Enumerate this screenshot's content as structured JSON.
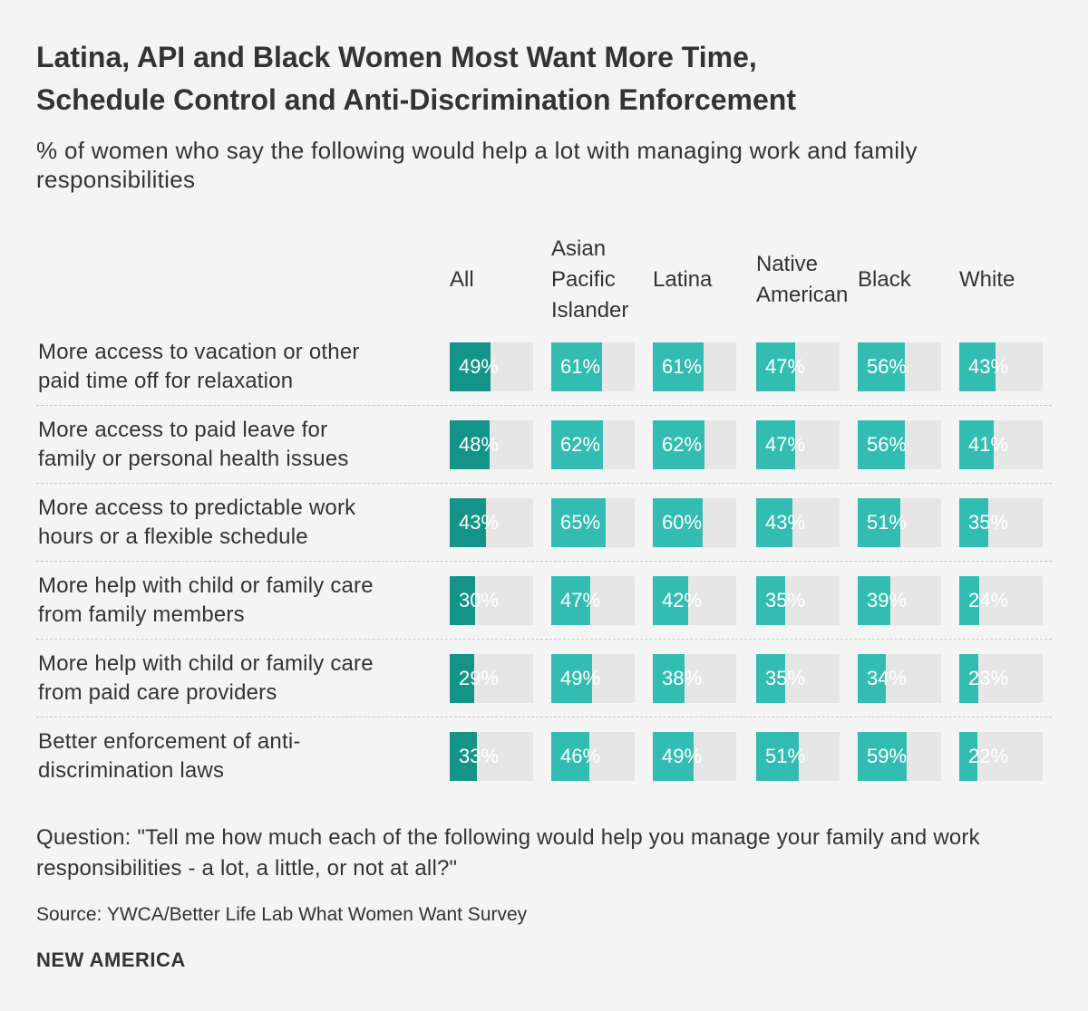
{
  "header": {
    "title_line1": "Latina, API and Black Women Most Want More Time,",
    "title_line2": "Schedule Control and Anti-Discrimination Enforcement",
    "subtitle": "% of women who say the following would help a lot with managing work and family responsibilities"
  },
  "colors": {
    "all": "#149388",
    "group": "#33bdb2",
    "track": "#e6e6e6"
  },
  "chart_data": {
    "type": "table",
    "title": "Latina, API and Black Women Most Want More Time, Schedule Control and Anti-Discrimination Enforcement",
    "unit": "%",
    "max": 100,
    "columns": [
      "All",
      "Asian\nPacific\nIslander",
      "Latina",
      "Native\nAmerican",
      "Black",
      "White"
    ],
    "rows": [
      {
        "label": "More access to vacation or other\npaid time off  for relaxation",
        "values": [
          49,
          61,
          61,
          47,
          56,
          43
        ]
      },
      {
        "label": "More access to paid leave for\nfamily or personal health issues",
        "values": [
          48,
          62,
          62,
          47,
          56,
          41
        ]
      },
      {
        "label": "More access to predictable work\nhours or a flexible schedule",
        "values": [
          43,
          65,
          60,
          43,
          51,
          35
        ]
      },
      {
        "label": "More help with child or family care\nfrom family members",
        "values": [
          30,
          47,
          42,
          35,
          39,
          24
        ]
      },
      {
        "label": "More help with child or family care\nfrom paid care providers",
        "values": [
          29,
          49,
          38,
          35,
          34,
          23
        ]
      },
      {
        "label": "Better enforcement of anti-\ndiscrimination laws",
        "values": [
          33,
          46,
          49,
          51,
          59,
          22
        ]
      }
    ]
  },
  "footer": {
    "question": "Question: \"Tell me how much each of the following would help you manage your family and work responsibilities - a lot, a little, or not at all?\"",
    "source": "Source: YWCA/Better Life Lab What Women Want Survey",
    "brand": "NEW AMERICA"
  }
}
